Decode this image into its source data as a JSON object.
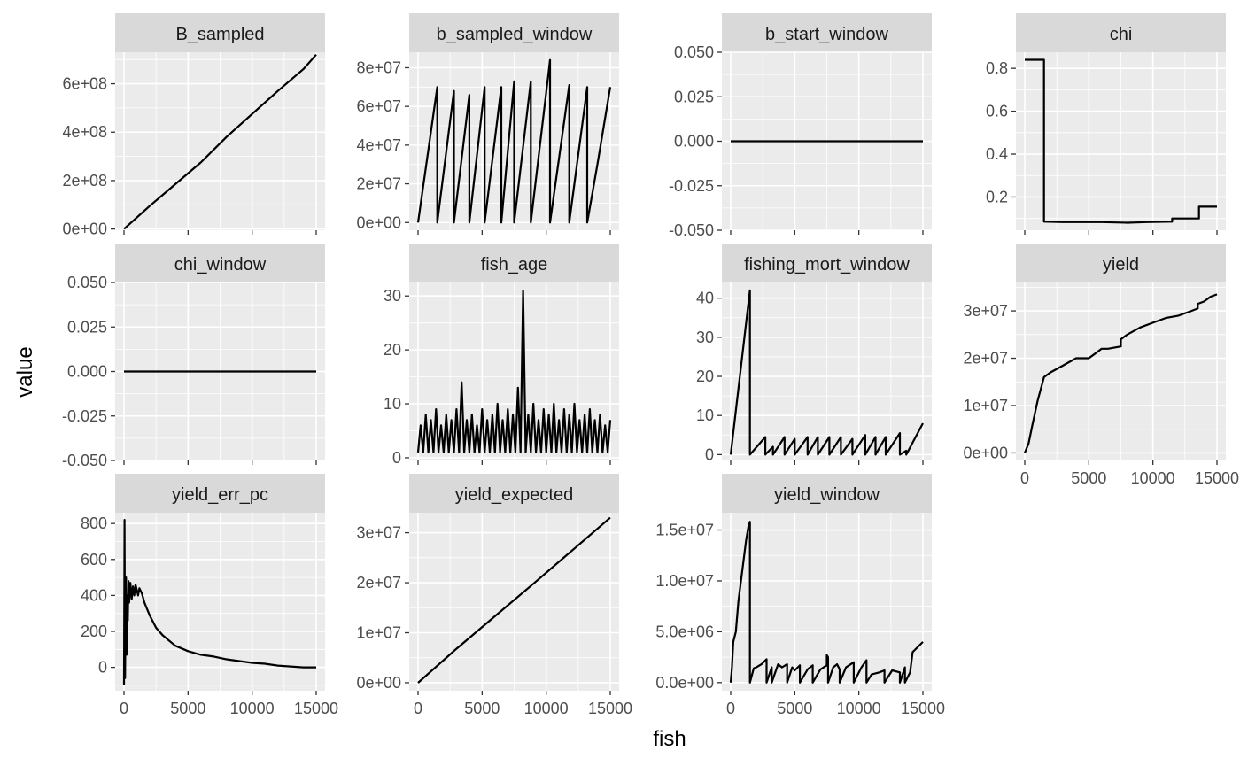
{
  "chart_data": {
    "type": "line",
    "layout": "facet_wrap",
    "xlabel": "fish",
    "ylabel": "value",
    "grid": true,
    "x_ticks": [
      0,
      5000,
      10000,
      15000
    ],
    "x_tick_labels": [
      "0",
      "5000",
      "10000",
      "15000"
    ],
    "xlim": [
      0,
      15000
    ],
    "panels": [
      {
        "title": "B_sampled",
        "ylim": [
          -5000000.0,
          730000000.0
        ],
        "y_ticks": [
          0,
          200000000.0,
          400000000.0,
          600000000.0
        ],
        "y_tick_labels": [
          "0e+00",
          "2e+08",
          "4e+08",
          "6e+08"
        ],
        "series": [
          {
            "x": [
              0,
              2000,
              4000,
              6000,
              8000,
              10000,
              12000,
              14000,
              15000
            ],
            "y": [
              0,
              95000000.0,
              185000000.0,
              275000000.0,
              380000000.0,
              475000000.0,
              570000000.0,
              660000000.0,
              720000000.0
            ]
          }
        ]
      },
      {
        "title": "b_sampled_window",
        "ylim": [
          -4000000.0,
          88000000.0
        ],
        "y_ticks": [
          0,
          20000000.0,
          40000000.0,
          60000000.0,
          80000000.0
        ],
        "y_tick_labels": [
          "0e+00",
          "2e+07",
          "4e+07",
          "6e+07",
          "8e+07"
        ],
        "series": [
          {
            "x": [
              0,
              1500,
              1500,
              2800,
              2800,
              4000,
              4000,
              5200,
              5200,
              6500,
              6500,
              7500,
              7500,
              8800,
              8800,
              10300,
              10300,
              11800,
              11800,
              13200,
              13200,
              14000,
              15000
            ],
            "y": [
              0,
              70000000,
              0,
              68000000,
              0,
              66000000,
              0,
              70000000,
              0,
              70000000,
              0,
              73000000,
              0,
              73000000,
              0,
              84000000,
              0,
              71000000,
              0,
              70000000,
              0,
              30000000,
              70000000
            ]
          }
        ]
      },
      {
        "title": "b_start_window",
        "ylim": [
          -0.05,
          0.05
        ],
        "y_ticks": [
          -0.05,
          -0.025,
          0,
          0.025,
          0.05
        ],
        "y_tick_labels": [
          "-0.050",
          "-0.025",
          "0.000",
          "0.025",
          "0.050"
        ],
        "series": [
          {
            "x": [
              0,
              15000
            ],
            "y": [
              0,
              0
            ]
          }
        ]
      },
      {
        "title": "chi",
        "ylim": [
          0.045,
          0.875
        ],
        "y_ticks": [
          0.2,
          0.4,
          0.6,
          0.8
        ],
        "y_tick_labels": [
          "0.2",
          "0.4",
          "0.6",
          "0.8"
        ],
        "series": [
          {
            "x": [
              0,
              1500,
              1500,
              3000,
              6000,
              8000,
              9500,
              11500,
              11500,
              13000,
              13000,
              13600,
              13600,
              15000
            ],
            "y": [
              0.84,
              0.84,
              0.085,
              0.083,
              0.083,
              0.08,
              0.083,
              0.085,
              0.1,
              0.1,
              0.1,
              0.1,
              0.155,
              0.155
            ]
          }
        ]
      },
      {
        "title": "chi_window",
        "ylim": [
          -0.05,
          0.05
        ],
        "y_ticks": [
          -0.05,
          -0.025,
          0,
          0.025,
          0.05
        ],
        "y_tick_labels": [
          "-0.050",
          "-0.025",
          "0.000",
          "0.025",
          "0.050"
        ],
        "series": [
          {
            "x": [
              0,
              15000
            ],
            "y": [
              0,
              0
            ]
          }
        ]
      },
      {
        "title": "fish_age",
        "ylim": [
          -0.5,
          32.5
        ],
        "y_ticks": [
          0,
          10,
          20,
          30
        ],
        "y_tick_labels": [
          "0",
          "10",
          "20",
          "30"
        ],
        "series": [
          {
            "x": [
              0,
              200,
              400,
              600,
              800,
              1000,
              1200,
              1400,
              1600,
              1800,
              2000,
              2200,
              2400,
              2600,
              2800,
              3000,
              3200,
              3400,
              3600,
              3800,
              4000,
              4200,
              4400,
              4600,
              4800,
              5000,
              5200,
              5400,
              5600,
              5800,
              6000,
              6200,
              6400,
              6600,
              6800,
              7000,
              7200,
              7400,
              7600,
              7800,
              8000,
              8200,
              8400,
              8600,
              8800,
              9000,
              9200,
              9400,
              9600,
              9800,
              10000,
              10200,
              10400,
              10600,
              10800,
              11000,
              11200,
              11400,
              11600,
              11800,
              12000,
              12200,
              12400,
              12600,
              12800,
              13000,
              13200,
              13400,
              13600,
              13800,
              14000,
              14200,
              14400,
              14600,
              14800,
              15000
            ],
            "y": [
              1,
              6,
              1,
              8,
              1,
              7,
              1,
              9,
              1,
              6,
              1,
              8,
              1,
              7,
              1,
              9,
              1,
              14,
              1,
              7,
              1,
              8,
              1,
              6,
              1,
              9,
              1,
              7,
              1,
              8,
              1,
              10,
              1,
              7,
              1,
              9,
              1,
              8,
              1,
              13,
              1,
              31,
              1,
              8,
              1,
              10,
              1,
              7,
              1,
              9,
              1,
              8,
              1,
              10,
              1,
              7,
              1,
              9,
              1,
              8,
              1,
              10,
              1,
              7,
              1,
              8,
              1,
              9,
              1,
              7,
              1,
              8,
              1,
              6,
              1,
              7
            ]
          }
        ]
      },
      {
        "title": "fishing_mort_window",
        "ylim": [
          -1.5,
          44
        ],
        "y_ticks": [
          0,
          10,
          20,
          30,
          40
        ],
        "y_tick_labels": [
          "0",
          "10",
          "20",
          "30",
          "40"
        ],
        "series": [
          {
            "x": [
              0,
              1500,
              1500,
              2700,
              2700,
              3300,
              3300,
              4200,
              4200,
              5000,
              5000,
              6000,
              6000,
              6800,
              6800,
              7700,
              7700,
              8600,
              8600,
              9500,
              9500,
              10500,
              10500,
              11300,
              11300,
              12100,
              12100,
              13200,
              13200,
              13700,
              13700,
              15000
            ],
            "y": [
              0,
              42,
              0,
              4.5,
              0,
              2,
              0,
              4.5,
              0,
              4,
              0,
              4.5,
              0,
              4.5,
              0,
              4.5,
              0,
              4.5,
              0,
              4,
              0,
              5,
              0,
              4.5,
              0,
              4.5,
              0,
              5.5,
              0,
              1,
              0,
              8
            ]
          }
        ]
      },
      {
        "title": "yield",
        "ylim": [
          -1600000.0,
          36000000.0
        ],
        "y_ticks": [
          0,
          10000000.0,
          20000000.0,
          30000000.0
        ],
        "y_tick_labels": [
          "0e+00",
          "1e+07",
          "2e+07",
          "3e+07"
        ],
        "series": [
          {
            "x": [
              0,
              300,
              600,
              1000,
              1500,
              2000,
              3000,
              4000,
              5000,
              5500,
              6000,
              6500,
              7500,
              7500,
              8000,
              9000,
              10000,
              11000,
              12000,
              13000,
              13500,
              13500,
              14000,
              14500,
              15000
            ],
            "y": [
              0,
              2000000,
              6000000,
              11000000,
              16000000,
              17000000,
              18500000,
              20000000,
              20000000,
              21000000,
              22000000,
              22000000,
              22500000,
              24000000,
              25000000,
              26500000,
              27500000,
              28500000,
              29000000,
              30000000,
              30500000,
              31500000,
              32000000,
              33000000,
              33500000
            ]
          }
        ]
      },
      {
        "title": "yield_err_pc",
        "ylim": [
          -130,
          860
        ],
        "y_ticks": [
          0,
          200,
          400,
          600,
          800
        ],
        "y_tick_labels": [
          "0",
          "200",
          "400",
          "600",
          "800"
        ],
        "series": [
          {
            "x": [
              0,
              40,
              80,
              120,
              160,
              200,
              250,
              300,
              350,
              400,
              500,
              600,
              700,
              800,
              900,
              1000,
              1100,
              1200,
              1400,
              1600,
              2000,
              2500,
              3000,
              3500,
              4000,
              5000,
              6000,
              7000,
              8000,
              9000,
              10000,
              11000,
              12000,
              13000,
              14000,
              15000
            ],
            "y": [
              -100,
              820,
              -60,
              300,
              500,
              70,
              400,
              260,
              480,
              360,
              470,
              380,
              450,
              400,
              460,
              430,
              400,
              440,
              410,
              360,
              290,
              220,
              180,
              150,
              120,
              90,
              70,
              60,
              45,
              35,
              25,
              20,
              10,
              5,
              0,
              0
            ]
          }
        ]
      },
      {
        "title": "yield_expected",
        "ylim": [
          -1600000.0,
          34000000.0
        ],
        "y_ticks": [
          0,
          10000000.0,
          20000000.0,
          30000000.0
        ],
        "y_tick_labels": [
          "0e+00",
          "1e+07",
          "2e+07",
          "3e+07"
        ],
        "series": [
          {
            "x": [
              0,
              3000,
              6000,
              9000,
              12000,
              15000
            ],
            "y": [
              0,
              6800000,
              13300000,
              19800000,
              26400000,
              33000000
            ]
          }
        ]
      },
      {
        "title": "yield_window",
        "ylim": [
          -800000.0,
          16700000.0
        ],
        "y_ticks": [
          0,
          5000000.0,
          10000000.0,
          15000000.0
        ],
        "y_tick_labels": [
          "0.0e+00",
          "5.0e+06",
          "1.0e+07",
          "1.5e+07"
        ],
        "series": [
          {
            "x": [
              0,
              100,
              200,
              400,
              600,
              800,
              1000,
              1200,
              1400,
              1500,
              1500,
              1800,
              2000,
              2400,
              2800,
              2800,
              3200,
              3200,
              3700,
              4000,
              4400,
              4400,
              4800,
              5000,
              5400,
              5400,
              6000,
              6400,
              6400,
              7000,
              7500,
              7500,
              7600,
              7600,
              8000,
              8300,
              8500,
              8500,
              9000,
              9600,
              9600,
              10200,
              10600,
              10600,
              11000,
              11600,
              12000,
              12000,
              12600,
              13200,
              13200,
              13600,
              13600,
              14000,
              14200,
              14600,
              15000
            ],
            "y": [
              0,
              1500000,
              4000000,
              5000000,
              8000000,
              10000000,
              12000000,
              14000000,
              15500000,
              15800000,
              0,
              1400000,
              1500000,
              1800000,
              2300000,
              0,
              1500000,
              0,
              1800000,
              1500000,
              1800000,
              0,
              1500000,
              1200000,
              1700000,
              0,
              1300000,
              1700000,
              0,
              1300000,
              1700000,
              2700000,
              2500000,
              0,
              1500000,
              1800000,
              1300000,
              0,
              1500000,
              2000000,
              0,
              1500000,
              2200000,
              0,
              800000,
              1000000,
              1200000,
              0,
              1200000,
              1000000,
              0,
              1500000,
              0,
              1000000,
              3000000,
              3500000,
              4000000
            ]
          }
        ]
      }
    ]
  }
}
